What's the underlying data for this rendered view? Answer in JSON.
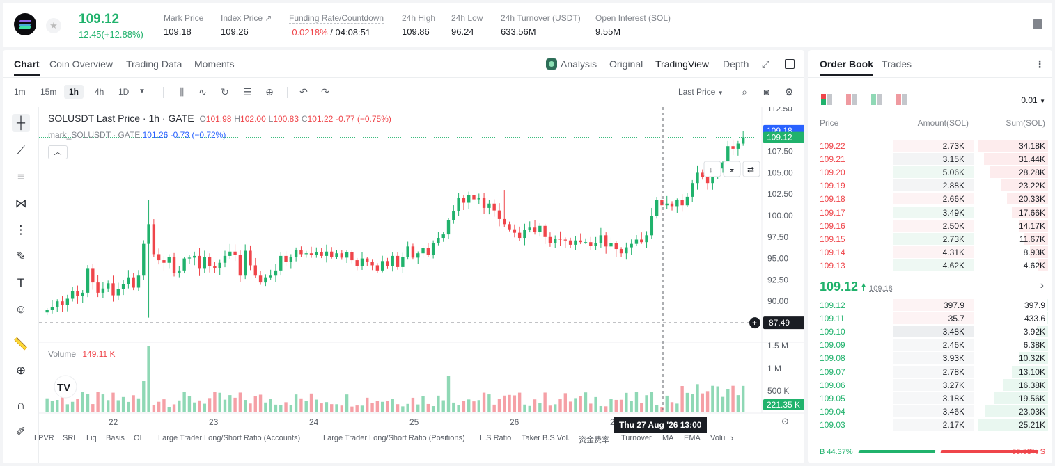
{
  "ticker": {
    "symbol_icon": "solana-logo",
    "last_price": "109.12",
    "change": "12.45(+12.88%)",
    "stats": [
      {
        "label": "Mark Price",
        "value": "109.18"
      },
      {
        "label": "Index Price ↗",
        "value": "109.26"
      },
      {
        "label": "Funding Rate/Countdown",
        "value": "-0.0218%",
        "value2": "/ 04:08:51"
      },
      {
        "label": "24h High",
        "value": "109.86"
      },
      {
        "label": "24h Low",
        "value": "96.24"
      },
      {
        "label": "24h Turnover (USDT)",
        "value": "633.56M"
      },
      {
        "label": "Open Interest (SOL)",
        "value": "9.55M"
      }
    ]
  },
  "chart_tabs": [
    "Chart",
    "Coin Overview",
    "Trading Data",
    "Moments"
  ],
  "view_tabs": {
    "analysis": "Analysis",
    "original": "Original",
    "tradingview": "TradingView",
    "depth": "Depth"
  },
  "intervals": [
    "1m",
    "15m",
    "1h",
    "4h",
    "1D"
  ],
  "price_source": "Last Price",
  "legend": {
    "title": "SOLUSDT Last Price · 1h · GATE",
    "o_label": "O",
    "o": "101.98",
    "h_label": "H",
    "h": "102.00",
    "l_label": "L",
    "l": "100.83",
    "c_label": "C",
    "c": "101.22",
    "chg": "-0.77 (−0.75%)",
    "mark_label": "mark_SOLUSDT · GATE",
    "mark_value": "101.26",
    "mark_chg": "-0.73 (−0.72%)"
  },
  "volume_legend": {
    "label": "Volume",
    "value": "149.11 K"
  },
  "price_axis": {
    "ticks": [
      "112.50",
      "110.00",
      "107.50",
      "105.00",
      "102.50",
      "100.00",
      "97.50",
      "95.00",
      "92.50",
      "90.00",
      "87.50"
    ],
    "mark_tag": "109.18",
    "last_tag": "109.12",
    "cross_tag": "87.49",
    "volume_ticks": [
      "1.5 M",
      "1 M",
      "500 K"
    ],
    "volume_tag": "221.35 K"
  },
  "time_axis": {
    "labels": [
      "22",
      "23",
      "24",
      "25",
      "26",
      "27"
    ],
    "crosshair_label": "Thu 27 Aug '26     13:00"
  },
  "indicators": [
    "LPVR",
    "SRL",
    "Liq",
    "Basis",
    "OI",
    "Large Trader Long/Short Ratio (Accounts)",
    "Large Trader Long/Short Ratio (Positions)",
    "L.S Ratio",
    "Taker B.S Vol.",
    "资金费率",
    "Turnover",
    "MA",
    "EMA",
    "Volu"
  ],
  "chart_data": {
    "type": "candlestick",
    "title": "SOLUSDT Last Price · 1h · GATE",
    "x_labels": [
      "22",
      "23",
      "24",
      "25",
      "26",
      "27"
    ],
    "ylim": [
      87.5,
      112.5
    ],
    "candles_close": [
      89.0,
      89.3,
      90.0,
      89.6,
      90.3,
      91.2,
      90.6,
      91.0,
      93.8,
      92.2,
      91.0,
      91.5,
      92.1,
      90.7,
      91.4,
      92.0,
      92.8,
      91.6,
      93.0,
      96.7,
      99.0,
      95.5,
      94.8,
      94.5,
      95.2,
      93.3,
      93.6,
      95.0,
      95.1,
      95.3,
      93.8,
      95.2,
      94.1,
      93.9,
      94.5,
      95.3,
      95.8,
      95.4,
      93.0,
      95.9,
      94.2,
      93.0,
      92.2,
      92.8,
      93.0,
      93.6,
      95.3,
      94.6,
      95.2,
      96.0,
      95.5,
      95.6,
      95.4,
      95.7,
      95.3,
      95.8,
      95.2,
      95.6,
      95.1,
      95.7,
      94.8,
      94.1,
      95.0,
      94.6,
      94.2,
      93.6,
      94.7,
      94.1,
      95.3,
      94.0,
      95.2,
      96.4,
      95.1,
      95.6,
      96.2,
      95.4,
      96.8,
      97.4,
      97.8,
      99.5,
      100.5,
      102.1,
      101.5,
      102.4,
      101.9,
      102.1,
      100.9,
      101.4,
      100.6,
      99.6,
      99.0,
      98.4,
      98.0,
      97.4,
      98.3,
      98.6,
      98.1,
      98.8,
      97.5,
      96.8,
      97.3,
      97.2,
      97.1,
      96.6,
      97.1,
      96.9,
      96.9,
      96.5,
      96.8,
      97.7,
      96.4,
      96.8,
      96.1,
      95.6,
      96.3,
      96.7,
      97.2,
      96.9,
      97.7,
      100.0,
      101.8,
      101.2,
      101.4,
      101.1,
      101.8,
      101.2,
      102.2,
      103.8,
      105.0,
      104.5,
      103.8,
      104.6,
      105.5,
      106.2,
      108.1,
      107.8,
      108.4,
      109.12
    ],
    "volume_unit": "SOL",
    "volume_ticks": [
      "1.5 M",
      "1 M",
      "500 K"
    ],
    "series": [
      {
        "name": "Volume",
        "value": "149.11 K"
      }
    ]
  },
  "orderbook": {
    "tabs": [
      "Order Book",
      "Trades"
    ],
    "precision": "0.01",
    "headers": {
      "price": "Price",
      "amount": "Amount(SOL)",
      "sum": "Sum(SOL)"
    },
    "asks": [
      {
        "price": "109.22",
        "amount": "2.73K",
        "sum": "34.18K",
        "depth": 1.0
      },
      {
        "price": "109.21",
        "amount": "3.15K",
        "sum": "31.44K",
        "depth": 0.92
      },
      {
        "price": "109.20",
        "amount": "5.06K",
        "sum": "28.28K",
        "depth": 0.83
      },
      {
        "price": "109.19",
        "amount": "2.88K",
        "sum": "23.22K",
        "depth": 0.68
      },
      {
        "price": "109.18",
        "amount": "2.66K",
        "sum": "20.33K",
        "depth": 0.59
      },
      {
        "price": "109.17",
        "amount": "3.49K",
        "sum": "17.66K",
        "depth": 0.52
      },
      {
        "price": "109.16",
        "amount": "2.50K",
        "sum": "14.17K",
        "depth": 0.41
      },
      {
        "price": "109.15",
        "amount": "2.73K",
        "sum": "11.67K",
        "depth": 0.34
      },
      {
        "price": "109.14",
        "amount": "4.31K",
        "sum": "8.93K",
        "depth": 0.26
      },
      {
        "price": "109.13",
        "amount": "4.62K",
        "sum": "4.62K",
        "depth": 0.14
      }
    ],
    "mid": {
      "price": "109.12",
      "mark": "109.18"
    },
    "bids": [
      {
        "price": "109.12",
        "amount": "397.9",
        "sum": "397.9",
        "depth": 0.02
      },
      {
        "price": "109.11",
        "amount": "35.7",
        "sum": "433.6",
        "depth": 0.02
      },
      {
        "price": "109.10",
        "amount": "3.48K",
        "sum": "3.92K",
        "depth": 0.16
      },
      {
        "price": "109.09",
        "amount": "2.46K",
        "sum": "6.38K",
        "depth": 0.25
      },
      {
        "price": "109.08",
        "amount": "3.93K",
        "sum": "10.32K",
        "depth": 0.41
      },
      {
        "price": "109.07",
        "amount": "2.78K",
        "sum": "13.10K",
        "depth": 0.52
      },
      {
        "price": "109.06",
        "amount": "3.27K",
        "sum": "16.38K",
        "depth": 0.65
      },
      {
        "price": "109.05",
        "amount": "3.18K",
        "sum": "19.56K",
        "depth": 0.77
      },
      {
        "price": "109.04",
        "amount": "3.46K",
        "sum": "23.03K",
        "depth": 0.91
      },
      {
        "price": "109.03",
        "amount": "2.17K",
        "sum": "25.21K",
        "depth": 1.0
      }
    ],
    "ratio": {
      "buy_label": "B 44.37%",
      "sell_label": "55.63% S",
      "buy": 0.4437
    }
  },
  "colors": {
    "up": "#20b26c",
    "down": "#ef454a",
    "up_bg": "#e9f7f0",
    "down_bg": "#fdeced",
    "accent": "#1a1d23"
  }
}
